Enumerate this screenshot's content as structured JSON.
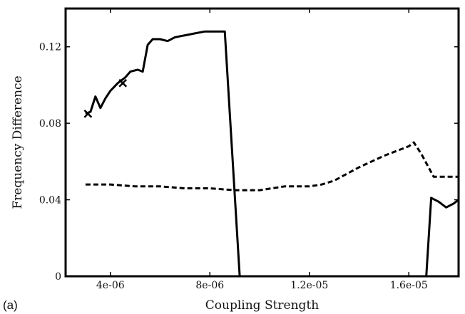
{
  "chart_data": {
    "type": "line",
    "panel_label": "(a)",
    "xlabel": "Coupling Strength",
    "ylabel": "Frequency Difference",
    "xlim": [
      2.2e-06,
      1.8e-05
    ],
    "ylim": [
      0,
      0.14
    ],
    "x_ticks": [
      {
        "value": 4e-06,
        "label": "4e-06"
      },
      {
        "value": 8e-06,
        "label": "8e-06"
      },
      {
        "value": 1.2e-05,
        "label": "1.2e-05"
      },
      {
        "value": 1.6e-05,
        "label": "1.6e-05"
      }
    ],
    "y_ticks": [
      {
        "value": 0,
        "label": "0"
      },
      {
        "value": 0.04,
        "label": "0.04"
      },
      {
        "value": 0.08,
        "label": "0.08"
      },
      {
        "value": 0.12,
        "label": "0.12"
      }
    ],
    "grid": false,
    "series": [
      {
        "style": "solid",
        "x": [
          3e-06,
          3.2e-06,
          3.4e-06,
          3.6e-06,
          3.8e-06,
          4e-06,
          4.3e-06,
          4.6e-06,
          4.8e-06,
          5.1e-06,
          5.3e-06,
          5.5e-06,
          5.7e-06,
          6e-06,
          6.3e-06,
          6.6e-06,
          7e-06,
          7.4e-06,
          7.8e-06,
          8.2e-06,
          8.6e-06,
          9.2e-06
        ],
        "y": [
          0.085,
          0.086,
          0.094,
          0.088,
          0.093,
          0.097,
          0.101,
          0.104,
          0.107,
          0.108,
          0.107,
          0.121,
          0.124,
          0.124,
          0.123,
          0.125,
          0.126,
          0.127,
          0.128,
          0.128,
          0.128,
          0.0
        ]
      },
      {
        "style": "solid",
        "x": [
          1.67e-05,
          1.69e-05,
          1.72e-05,
          1.75e-05,
          1.78e-05,
          1.8e-05
        ],
        "y": [
          0.0,
          0.041,
          0.039,
          0.036,
          0.038,
          0.04
        ]
      },
      {
        "style": "dashed",
        "x": [
          3e-06,
          4e-06,
          5e-06,
          6e-06,
          7e-06,
          8e-06,
          9e-06,
          1e-05,
          1.05e-05,
          1.1e-05,
          1.2e-05,
          1.25e-05,
          1.3e-05,
          1.4e-05,
          1.5e-05,
          1.6e-05,
          1.62e-05,
          1.65e-05,
          1.7e-05,
          1.8e-05
        ],
        "y": [
          0.048,
          0.048,
          0.047,
          0.047,
          0.046,
          0.046,
          0.045,
          0.045,
          0.046,
          0.047,
          0.047,
          0.048,
          0.05,
          0.057,
          0.063,
          0.068,
          0.07,
          0.064,
          0.052,
          0.052
        ]
      }
    ],
    "markers": [
      {
        "shape": "x",
        "x": 3.1e-06,
        "y": 0.085
      },
      {
        "shape": "x",
        "x": 4.5e-06,
        "y": 0.101
      }
    ]
  }
}
